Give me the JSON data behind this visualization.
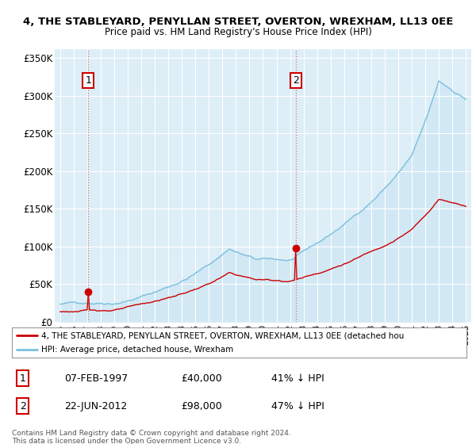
{
  "title": "4, THE STABLEYARD, PENYLLAN STREET, OVERTON, WREXHAM, LL13 0EE",
  "subtitle": "Price paid vs. HM Land Registry's House Price Index (HPI)",
  "hpi_color": "#7bbfdd",
  "price_color": "#cc0000",
  "marker_color": "#cc0000",
  "dashed_color": "#cc6666",
  "plot_bg": "#ddeef7",
  "transaction1_date": "07-FEB-1997",
  "transaction1_price": 40000,
  "transaction1_hpi_pct": "41% ↓ HPI",
  "transaction2_date": "22-JUN-2012",
  "transaction2_price": 98000,
  "transaction2_hpi_pct": "47% ↓ HPI",
  "legend_label_price": "4, THE STABLEYARD, PENYLLAN STREET, OVERTON, WREXHAM, LL13 0EE (detached hou",
  "legend_label_hpi": "HPI: Average price, detached house, Wrexham",
  "footer": "Contains HM Land Registry data © Crown copyright and database right 2024.\nThis data is licensed under the Open Government Licence v3.0.",
  "ylim": [
    0,
    360000
  ],
  "yticks": [
    0,
    50000,
    100000,
    150000,
    200000,
    250000,
    300000,
    350000
  ],
  "ytick_labels": [
    "£0",
    "£50K",
    "£100K",
    "£150K",
    "£200K",
    "£250K",
    "£300K",
    "£350K"
  ],
  "t1": 1997.083,
  "t2": 2012.417,
  "p1": 40000,
  "p2": 98000
}
